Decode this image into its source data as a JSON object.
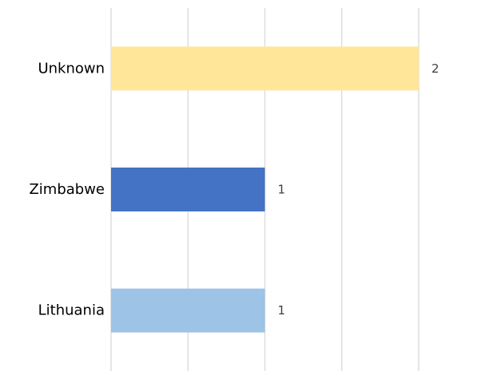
{
  "chart_data": {
    "type": "bar",
    "orientation": "horizontal",
    "categories": [
      "Unknown",
      "Zimbabwe",
      "Lithuania"
    ],
    "values": [
      2,
      1,
      1
    ],
    "colors": [
      "#FFE699",
      "#4472C4",
      "#9DC3E6"
    ],
    "data_labels": [
      "2",
      "1",
      "1"
    ],
    "xlim": [
      0,
      2.5
    ],
    "grid": true,
    "x_tick_labels_shown": false
  }
}
